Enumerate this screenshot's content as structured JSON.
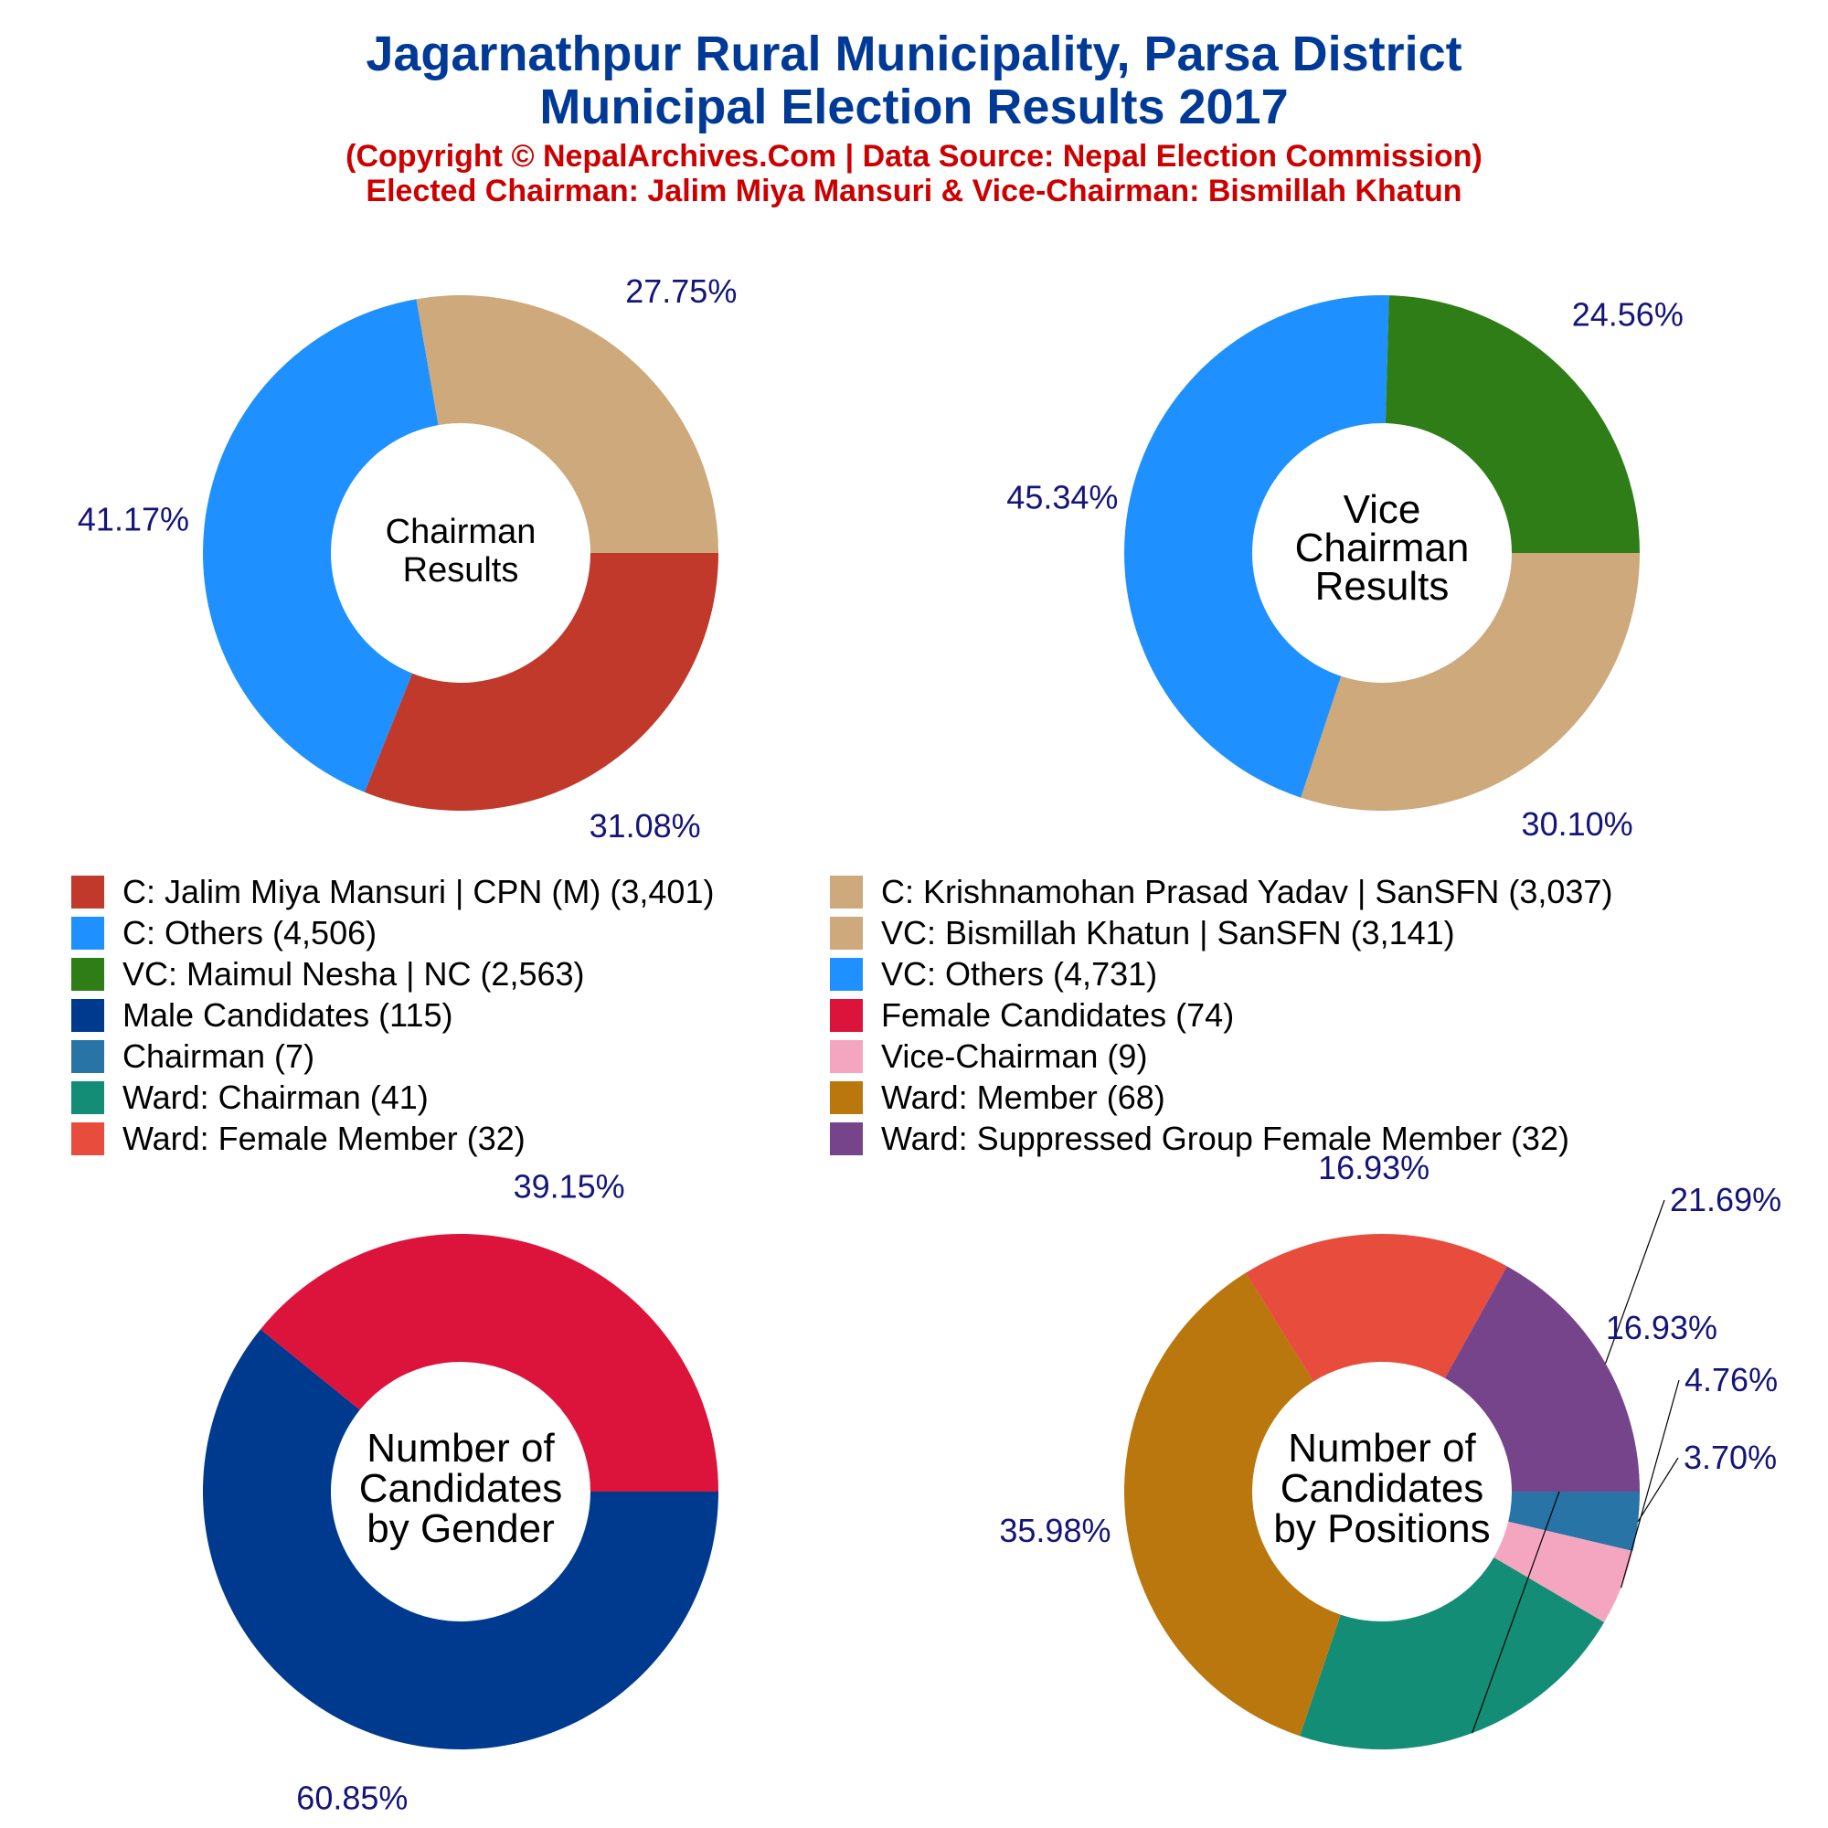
{
  "header": {
    "title_line1": "Jagarnathpur Rural Municipality, Parsa District",
    "title_line2": "Municipal Election Results 2017",
    "subtitle_line1": "(Copyright © NepalArchives.Com | Data Source: Nepal Election Commission)",
    "subtitle_line2": "Elected Chairman: Jalim Miya Mansuri & Vice-Chairman: Bismillah Khatun"
  },
  "legend": {
    "items": [
      {
        "label": "C: Jalim Miya Mansuri | CPN (M) (3,401)",
        "color": "#C0392B"
      },
      {
        "label": "C: Krishnamohan Prasad Yadav | SanSFN (3,037)",
        "color": "#CDA97C"
      },
      {
        "label": "C: Others (4,506)",
        "color": "#1E90FF"
      },
      {
        "label": "VC: Bismillah Khatun | SanSFN (3,141)",
        "color": "#CDA97C"
      },
      {
        "label": "VC: Maimul Nesha | NC (2,563)",
        "color": "#2E7D16"
      },
      {
        "label": "VC: Others (4,731)",
        "color": "#1E90FF"
      },
      {
        "label": "Male Candidates (115)",
        "color": "#003A8F"
      },
      {
        "label": "Female Candidates (74)",
        "color": "#DC143C"
      },
      {
        "label": "Chairman (7)",
        "color": "#2874A6"
      },
      {
        "label": "Vice-Chairman (9)",
        "color": "#F4A6C0"
      },
      {
        "label": "Ward: Chairman (41)",
        "color": "#138D75"
      },
      {
        "label": "Ward: Member (68)",
        "color": "#B9770E"
      },
      {
        "label": "Ward: Female Member (32)",
        "color": "#E74C3C"
      },
      {
        "label": "Ward: Suppressed Group Female Member (32)",
        "color": "#76448A"
      }
    ]
  },
  "chart_data": [
    {
      "type": "pie",
      "center_label": [
        "Chairman",
        "Results"
      ],
      "slices": [
        {
          "value": 3401,
          "percent_label": "31.08%",
          "color": "#C0392B"
        },
        {
          "value": 4506,
          "percent_label": "41.17%",
          "color": "#1E90FF"
        },
        {
          "value": 3037,
          "percent_label": "27.75%",
          "color": "#CDA97C"
        }
      ]
    },
    {
      "type": "pie",
      "center_label": [
        "Vice",
        "Chairman",
        "Results"
      ],
      "slices": [
        {
          "value": 3141,
          "percent_label": "30.10%",
          "color": "#CDA97C"
        },
        {
          "value": 4731,
          "percent_label": "45.34%",
          "color": "#1E90FF"
        },
        {
          "value": 2563,
          "percent_label": "24.56%",
          "color": "#2E7D16"
        }
      ]
    },
    {
      "type": "pie",
      "center_label": [
        "Number of",
        "Candidates",
        "by Gender"
      ],
      "slices": [
        {
          "value": 115,
          "percent_label": "60.85%",
          "color": "#003A8F"
        },
        {
          "value": 74,
          "percent_label": "39.15%",
          "color": "#DC143C"
        }
      ]
    },
    {
      "type": "pie",
      "center_label": [
        "Number of",
        "Candidates",
        "by Positions"
      ],
      "slices": [
        {
          "value": 7,
          "percent_label": "3.70%",
          "color": "#2874A6"
        },
        {
          "value": 9,
          "percent_label": "4.76%",
          "color": "#F4A6C0"
        },
        {
          "value": 41,
          "percent_label": "21.69%",
          "color": "#138D75"
        },
        {
          "value": 68,
          "percent_label": "35.98%",
          "color": "#B9770E"
        },
        {
          "value": 32,
          "percent_label": "16.93%",
          "color": "#E74C3C"
        },
        {
          "value": 32,
          "percent_label": "16.93%",
          "color": "#76448A"
        }
      ]
    }
  ]
}
